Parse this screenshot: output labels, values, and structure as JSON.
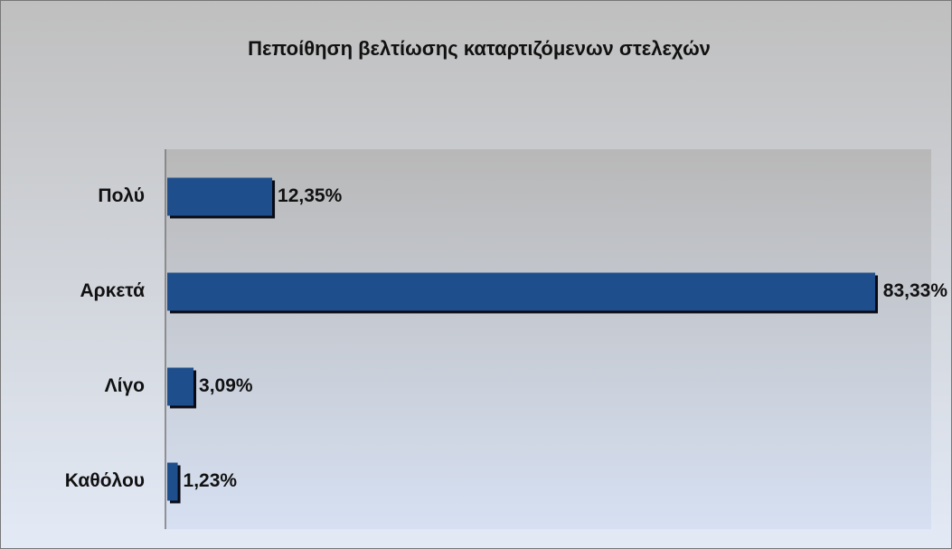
{
  "chart_data": {
    "type": "bar",
    "orientation": "horizontal",
    "title": "Πεποίθηση βελτίωσης καταρτιζόμενων στελεχών",
    "categories": [
      "Πολύ",
      "Αρκετά",
      "Λίγο",
      "Καθόλου"
    ],
    "values": [
      12.35,
      83.33,
      3.09,
      1.23
    ],
    "value_labels": [
      "12,35%",
      "83,33%",
      "3,09%",
      "1,23%"
    ],
    "color": "#1f4e8c"
  }
}
